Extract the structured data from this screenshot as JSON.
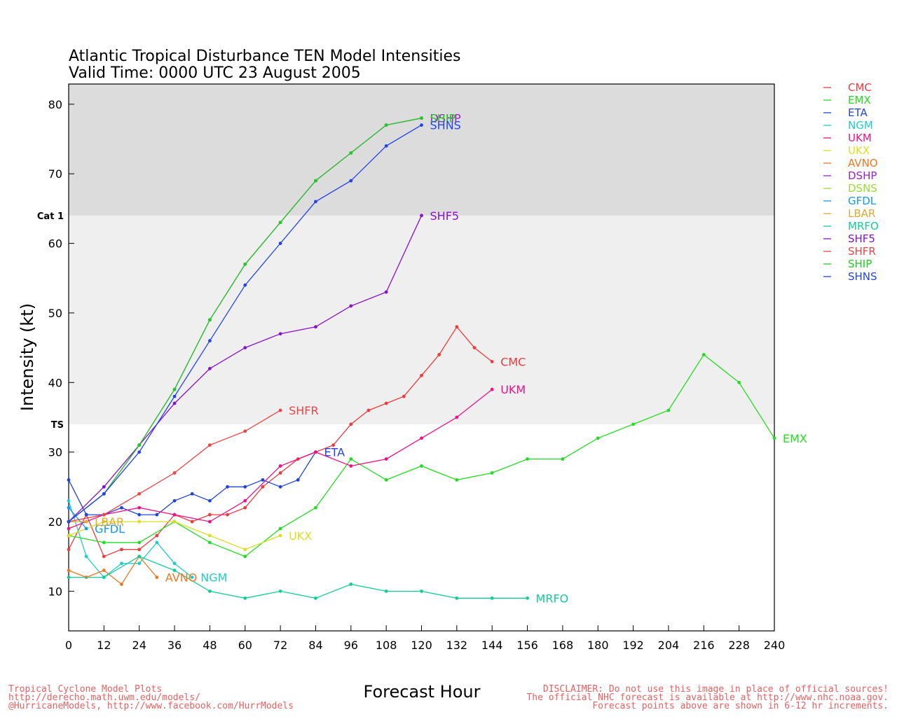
{
  "title_line1": "Atlantic Tropical Disturbance TEN Model Intensities",
  "title_line2": "Valid Time: 0000 UTC 23 August 2005",
  "footer": {
    "left": [
      "Tropical Cyclone Model Plots",
      "http://derecho.math.uwm.edu/models/",
      "@HurricaneModels, http://www.facebook.com/HurrModels"
    ],
    "right": [
      "DISCLAIMER: Do not use this image in place of official sources!",
      "The official NHC forecast is available at http://www.nhc.noaa.gov.",
      "Forecast points above are shown in 6-12 hr increments."
    ],
    "color": "#e86060"
  },
  "chart_data": {
    "type": "line",
    "xlabel": "Forecast Hour",
    "ylabel": "Intensity (kt)",
    "xlim": [
      0,
      240
    ],
    "ylim": [
      4.3,
      82.9
    ],
    "xticks": [
      0,
      12,
      24,
      36,
      48,
      60,
      72,
      84,
      96,
      108,
      120,
      132,
      144,
      156,
      168,
      180,
      192,
      204,
      216,
      228,
      240
    ],
    "yticks": [
      10,
      20,
      30,
      40,
      50,
      60,
      70,
      80
    ],
    "bands": [
      {
        "from": 34,
        "to": 64,
        "color": "#efefef"
      },
      {
        "from": 64,
        "to": 82.9,
        "color": "#dcdcdc"
      }
    ],
    "category_labels": [
      {
        "value": 64,
        "label": "Cat 1"
      },
      {
        "value": 34,
        "label": "TS"
      }
    ],
    "series": [
      {
        "name": "CMC",
        "color": "#ee3b3b",
        "x": [
          0,
          6,
          12,
          18,
          24,
          30,
          36,
          42,
          48,
          54,
          60,
          66,
          72,
          78,
          84,
          90,
          96,
          102,
          108,
          114,
          120,
          126,
          132,
          138,
          144
        ],
        "y": [
          16,
          21,
          15,
          16,
          16,
          18,
          21,
          20,
          21,
          21,
          22,
          25,
          27,
          29,
          30,
          31,
          34,
          36,
          37,
          38,
          41,
          44,
          48,
          45,
          43
        ]
      },
      {
        "name": "EMX",
        "color": "#22dd22",
        "x": [
          0,
          12,
          24,
          36,
          48,
          60,
          72,
          84,
          96,
          108,
          120,
          132,
          144,
          156,
          168,
          180,
          192,
          204,
          216,
          228,
          240
        ],
        "y": [
          18,
          17,
          17,
          20,
          17,
          15,
          19,
          22,
          29,
          26,
          28,
          26,
          27,
          29,
          29,
          32,
          34,
          36,
          44,
          40,
          32
        ]
      },
      {
        "name": "ETA",
        "color": "#2244dd",
        "x": [
          0,
          6,
          12,
          18,
          24,
          30,
          36,
          42,
          48,
          54,
          60,
          66,
          72,
          78,
          84
        ],
        "y": [
          26,
          21,
          21,
          22,
          21,
          21,
          23,
          24,
          23,
          25,
          25,
          26,
          25,
          26,
          30
        ]
      },
      {
        "name": "NGM",
        "color": "#22cccc",
        "x": [
          0,
          6,
          12,
          18,
          24,
          30,
          36,
          42
        ],
        "y": [
          23,
          15,
          12,
          14,
          14,
          17,
          14,
          12
        ]
      },
      {
        "name": "UKM",
        "color": "#ee1188",
        "x": [
          0,
          12,
          24,
          36,
          48,
          60,
          72,
          84,
          96,
          108,
          120,
          132,
          144
        ],
        "y": [
          19,
          21,
          22,
          21,
          20,
          23,
          28,
          30,
          28,
          29,
          32,
          35,
          39
        ]
      },
      {
        "name": "UKX",
        "color": "#dddd22",
        "x": [
          0,
          12,
          24,
          36,
          48,
          60,
          72
        ],
        "y": [
          18,
          20,
          20,
          20,
          18,
          16,
          18
        ]
      },
      {
        "name": "AVNO",
        "color": "#ee7722",
        "x": [
          0,
          6,
          12,
          18,
          24,
          30
        ],
        "y": [
          13,
          12,
          13,
          11,
          15,
          12
        ]
      },
      {
        "name": "DSHP",
        "color": "#9922cc",
        "x": [
          0,
          12,
          24,
          36,
          48,
          60,
          72,
          84,
          96,
          108,
          120
        ],
        "y": [
          20,
          24,
          31,
          39,
          49,
          57,
          63,
          69,
          73,
          77,
          78
        ]
      },
      {
        "name": "DSNS",
        "color": "#99dd33",
        "x": [],
        "y": []
      },
      {
        "name": "GFDL",
        "color": "#1199ee",
        "x": [
          0,
          6
        ],
        "y": [
          22,
          19
        ]
      },
      {
        "name": "LBAR",
        "color": "#ddaa33",
        "x": [
          0,
          6
        ],
        "y": [
          20,
          20
        ]
      },
      {
        "name": "MRFO",
        "color": "#11cc99",
        "x": [
          0,
          12,
          24,
          36,
          48,
          60,
          72,
          84,
          96,
          108,
          120,
          132,
          144,
          156
        ],
        "y": [
          12,
          12,
          15,
          13,
          10,
          9,
          10,
          9,
          11,
          10,
          10,
          9,
          9,
          9
        ]
      },
      {
        "name": "SHF5",
        "color": "#8811cc",
        "x": [
          0,
          12,
          24,
          36,
          48,
          60,
          72,
          84,
          96,
          108,
          120
        ],
        "y": [
          20,
          25,
          31,
          37,
          42,
          45,
          47,
          48,
          51,
          53,
          64
        ]
      },
      {
        "name": "SHFR",
        "color": "#ee4444",
        "x": [
          0,
          12,
          24,
          36,
          48,
          60,
          72
        ],
        "y": [
          20,
          21,
          24,
          27,
          31,
          33,
          36
        ]
      },
      {
        "name": "SHIP",
        "color": "#22cc22",
        "x": [
          0,
          12,
          24,
          36,
          48,
          60,
          72,
          84,
          96,
          108,
          120
        ],
        "y": [
          20,
          24,
          31,
          39,
          49,
          57,
          63,
          69,
          73,
          77,
          78
        ]
      },
      {
        "name": "SHNS",
        "color": "#2244ee",
        "x": [
          0,
          12,
          24,
          36,
          48,
          60,
          72,
          84,
          96,
          108,
          120
        ],
        "y": [
          20,
          24,
          30,
          38,
          46,
          54,
          60,
          66,
          69,
          74,
          77
        ]
      }
    ],
    "end_labels": [
      {
        "text": "CMC",
        "series": "CMC"
      },
      {
        "text": "EMX",
        "series": "EMX"
      },
      {
        "text": "ETA",
        "series": "ETA"
      },
      {
        "text": "NGM",
        "series": "NGM"
      },
      {
        "text": "UKM",
        "series": "UKM"
      },
      {
        "text": "UKX",
        "series": "UKX"
      },
      {
        "text": "AVNO",
        "series": "AVNO"
      },
      {
        "text": "DSHP",
        "series": "DSHP"
      },
      {
        "text": "GFDL",
        "series": "GFDL"
      },
      {
        "text": "LBAR",
        "series": "LBAR"
      },
      {
        "text": "MRFO",
        "series": "MRFO"
      },
      {
        "text": "SHF5",
        "series": "SHF5"
      },
      {
        "text": "SHFR",
        "series": "SHFR"
      },
      {
        "text": "SHIP",
        "series": "SHIP"
      },
      {
        "text": "SHNS",
        "series": "SHNS"
      }
    ],
    "legend_position": "right"
  }
}
